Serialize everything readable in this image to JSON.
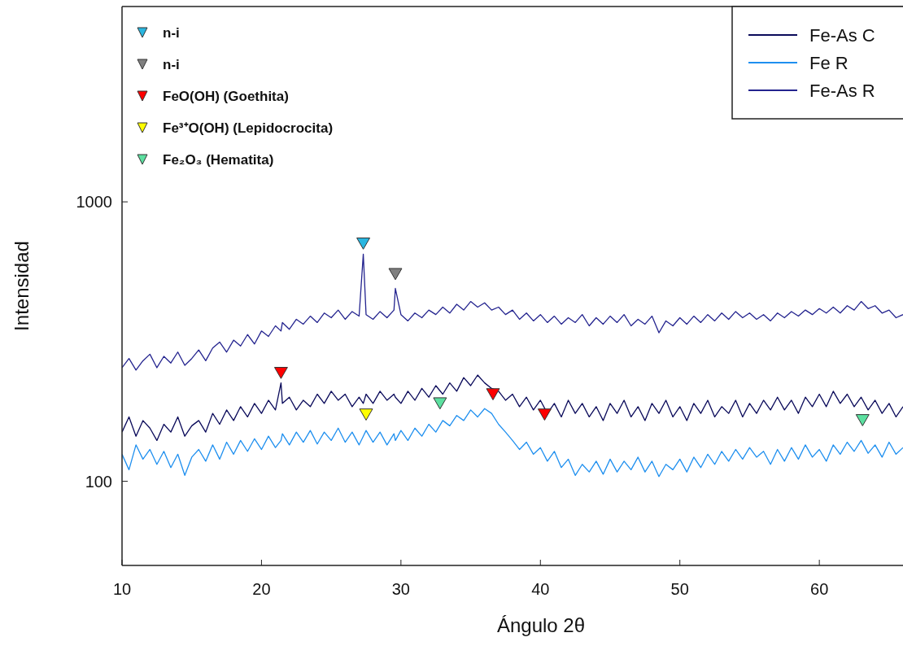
{
  "chart_data": {
    "type": "line",
    "xlabel": "Ángulo 2θ",
    "ylabel": "Intensidad",
    "log": "y",
    "xlim": [
      10,
      66
    ],
    "xticks": [
      10,
      20,
      30,
      40,
      50,
      60
    ],
    "ylim": [
      50,
      5000
    ],
    "yticks": [
      100,
      1000
    ],
    "grid": false,
    "legend": "top right",
    "x": [
      10,
      10.5,
      11,
      11.5,
      12,
      12.5,
      13,
      13.5,
      14,
      14.5,
      15,
      15.5,
      16,
      16.5,
      17,
      17.5,
      18,
      18.5,
      19,
      19.5,
      20,
      20.5,
      21,
      21.4,
      21.5,
      22,
      22.5,
      23,
      23.5,
      24,
      24.5,
      25,
      25.5,
      26,
      26.5,
      27,
      27.3,
      27.5,
      28,
      28.5,
      29,
      29.5,
      29.6,
      30,
      30.5,
      31,
      31.5,
      32,
      32.5,
      33,
      33.5,
      34,
      34.5,
      35,
      35.5,
      36,
      36.5,
      37,
      37.5,
      38,
      38.5,
      39,
      39.5,
      40,
      40.5,
      41,
      41.5,
      42,
      42.5,
      43,
      43.5,
      44,
      44.5,
      45,
      45.5,
      46,
      46.5,
      47,
      47.5,
      48,
      48.5,
      49,
      49.5,
      50,
      50.5,
      51,
      51.5,
      52,
      52.5,
      53,
      53.5,
      54,
      54.5,
      55,
      55.5,
      56,
      56.5,
      57,
      57.5,
      58,
      58.5,
      59,
      59.5,
      60,
      60.5,
      61,
      61.5,
      62,
      62.5,
      63,
      63.5,
      64,
      64.5,
      65,
      65.5,
      66
    ],
    "series": [
      {
        "name": "Fe-As C",
        "color": "#0a0a5a",
        "values": [
          150,
          170,
          145,
          165,
          155,
          140,
          160,
          150,
          170,
          145,
          158,
          165,
          150,
          175,
          160,
          180,
          165,
          185,
          170,
          190,
          175,
          195,
          180,
          225,
          190,
          200,
          180,
          195,
          185,
          205,
          190,
          210,
          195,
          205,
          185,
          200,
          190,
          205,
          190,
          210,
          195,
          205,
          200,
          190,
          210,
          195,
          215,
          200,
          220,
          205,
          225,
          210,
          235,
          220,
          240,
          225,
          215,
          210,
          195,
          205,
          185,
          200,
          180,
          195,
          175,
          190,
          170,
          195,
          175,
          190,
          170,
          185,
          165,
          190,
          175,
          195,
          170,
          185,
          165,
          190,
          175,
          195,
          170,
          185,
          165,
          190,
          175,
          195,
          170,
          185,
          175,
          195,
          170,
          190,
          175,
          195,
          180,
          200,
          180,
          195,
          175,
          200,
          185,
          205,
          185,
          210,
          190,
          205,
          185,
          200,
          180,
          195,
          175,
          190,
          170,
          185
        ]
      },
      {
        "name": "Fe R",
        "color": "#1e8fef",
        "values": [
          125,
          110,
          135,
          120,
          130,
          115,
          128,
          112,
          125,
          105,
          122,
          130,
          118,
          135,
          120,
          138,
          125,
          140,
          128,
          142,
          130,
          145,
          132,
          140,
          148,
          135,
          150,
          138,
          152,
          136,
          150,
          140,
          155,
          138,
          150,
          135,
          145,
          152,
          138,
          150,
          135,
          148,
          140,
          152,
          140,
          155,
          145,
          160,
          150,
          165,
          158,
          172,
          165,
          180,
          170,
          182,
          175,
          160,
          150,
          140,
          130,
          138,
          125,
          132,
          118,
          128,
          112,
          120,
          105,
          115,
          108,
          118,
          106,
          120,
          108,
          118,
          110,
          122,
          108,
          118,
          104,
          115,
          110,
          120,
          108,
          122,
          112,
          125,
          115,
          128,
          118,
          130,
          120,
          132,
          122,
          128,
          115,
          130,
          118,
          132,
          120,
          135,
          122,
          130,
          118,
          135,
          125,
          138,
          128,
          140,
          126,
          135,
          122,
          138,
          125,
          132
        ]
      },
      {
        "name": "Fe-As R",
        "color": "#24248f",
        "values": [
          255,
          275,
          250,
          270,
          285,
          255,
          280,
          265,
          290,
          260,
          275,
          295,
          270,
          300,
          315,
          290,
          320,
          305,
          335,
          310,
          345,
          330,
          360,
          345,
          370,
          350,
          380,
          365,
          390,
          370,
          400,
          385,
          410,
          380,
          405,
          390,
          650,
          395,
          380,
          405,
          385,
          410,
          490,
          395,
          375,
          400,
          385,
          410,
          395,
          420,
          400,
          430,
          410,
          440,
          420,
          435,
          410,
          420,
          395,
          410,
          380,
          400,
          375,
          395,
          370,
          390,
          365,
          385,
          370,
          395,
          360,
          385,
          365,
          390,
          370,
          395,
          360,
          380,
          365,
          390,
          340,
          375,
          360,
          385,
          365,
          390,
          370,
          395,
          375,
          400,
          380,
          405,
          385,
          400,
          380,
          395,
          375,
          400,
          385,
          405,
          390,
          410,
          395,
          415,
          400,
          420,
          400,
          425,
          410,
          440,
          415,
          425,
          400,
          410,
          385,
          395
        ]
      },
      {
        "name": "n-i",
        "type": "scatter",
        "marker": "triangle",
        "color": "#29b6e0",
        "x": [
          27.3
        ],
        "values": [
          720
        ]
      },
      {
        "name": "n-i",
        "type": "scatter",
        "marker": "triangle",
        "color": "#808080",
        "x": [
          29.6
        ],
        "values": [
          560
        ]
      },
      {
        "name": "FeO(OH) (Goethita)",
        "type": "scatter",
        "marker": "triangle",
        "color": "#ff0000",
        "x": [
          21.4,
          36.6,
          40.3
        ],
        "values": [
          248,
          208,
          176
        ]
      },
      {
        "name": "Fe³⁺O(OH) (Lepidocrocita)",
        "type": "scatter",
        "marker": "triangle",
        "color": "#ffff00",
        "x": [
          27.5
        ],
        "values": [
          176
        ]
      },
      {
        "name": "Fe₂O₃ (Hematita)",
        "type": "scatter",
        "marker": "triangle",
        "color": "#5ce0a0",
        "x": [
          32.8,
          63.1
        ],
        "values": [
          193,
          168
        ]
      }
    ]
  }
}
